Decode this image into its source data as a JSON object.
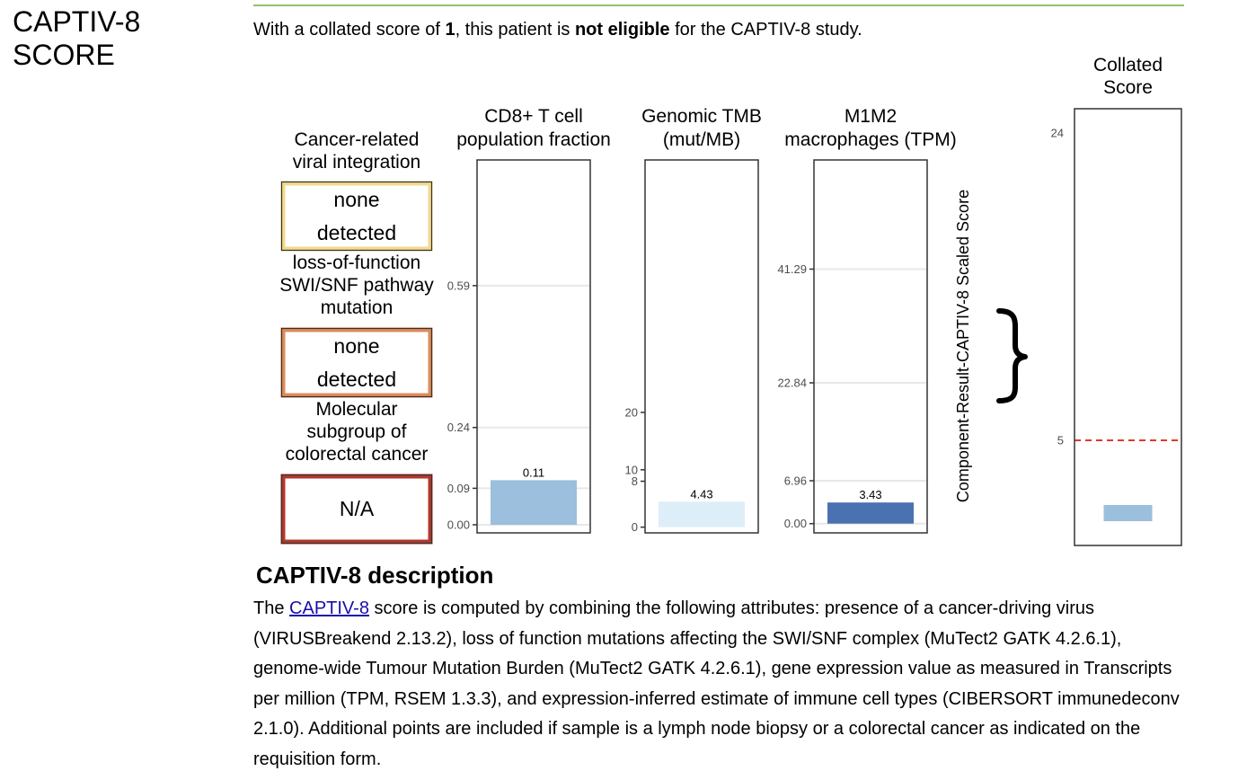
{
  "section": {
    "title": "CAPTIV-8 SCORE"
  },
  "summary": {
    "prefix": "With a collated score of ",
    "score": "1",
    "middle": ", this patient is ",
    "status": "not eligible",
    "suffix": " for the CAPTIV-8 study."
  },
  "categorical": [
    {
      "label": [
        "Cancer-related",
        "viral integration"
      ],
      "value": [
        "none",
        "detected"
      ],
      "color": "#f3d98b"
    },
    {
      "label": [
        "loss-of-function",
        "SWI/SNF pathway",
        "mutation"
      ],
      "value": [
        "none",
        "detected"
      ],
      "color": "#e08a58"
    },
    {
      "label": [
        "Molecular",
        "subgroup of",
        "colorectal cancer"
      ],
      "value": [
        "N/A"
      ],
      "color": "#b5372a"
    }
  ],
  "chart_data": [
    {
      "type": "bar",
      "title": [
        "CD8+ T cell",
        "population fraction"
      ],
      "ticks": [
        0.0,
        0.09,
        0.24,
        0.59
      ],
      "tick_labels": [
        "0.00",
        "0.09",
        "0.24",
        "0.59"
      ],
      "ylim": [
        -0.02,
        0.9
      ],
      "values": [
        0.11
      ],
      "value_labels": [
        "0.11"
      ],
      "colors": [
        "#9bbfdc"
      ],
      "grid": true
    },
    {
      "type": "bar",
      "title": [
        "Genomic TMB",
        "(mut/MB)"
      ],
      "ticks": [
        0,
        8,
        10,
        20
      ],
      "tick_labels": [
        "0",
        "8",
        "10",
        "20"
      ],
      "ylim": [
        -1,
        64
      ],
      "values": [
        4.43
      ],
      "value_labels": [
        "4.43"
      ],
      "colors": [
        "#ddeef8"
      ],
      "grid": false
    },
    {
      "type": "bar",
      "title": [
        "M1M2",
        "macrophages (TPM)"
      ],
      "ticks": [
        0.0,
        6.96,
        22.84,
        41.29
      ],
      "tick_labels": [
        "0.00",
        "6.96",
        "22.84",
        "41.29"
      ],
      "ylim": [
        -1.5,
        59
      ],
      "values": [
        3.43
      ],
      "value_labels": [
        "3.43"
      ],
      "colors": [
        "#4a72b0"
      ],
      "grid": true
    },
    {
      "type": "bar",
      "title": [
        "Collated",
        "Score"
      ],
      "ticks": [
        5,
        24
      ],
      "tick_labels": [
        "5",
        "24"
      ],
      "ylim": [
        -1.5,
        25.5
      ],
      "values": [
        1
      ],
      "colors": [
        "#9bbfdc"
      ],
      "threshold": 5,
      "threshold_color": "#e0392b",
      "grid": false
    }
  ],
  "axis": {
    "scaled_label": "Component-Result-CAPTIV-8 Scaled Score"
  },
  "description": {
    "title": "CAPTIV-8 description",
    "intro": "The ",
    "link": "CAPTIV-8",
    "body": " score is computed by combining the following attributes: presence of a cancer-driving virus (VIRUSBreakend 2.13.2), loss of function mutations affecting the SWI/SNF complex (MuTect2 GATK 4.2.6.1), genome-wide Tumour Mutation Burden (MuTect2 GATK 4.2.6.1), gene expression value as measured in Transcripts per million (TPM, RSEM 1.3.3), and expression-inferred estimate of immune cell types (CIBERSORT immunedeconv 2.1.0). Additional points are included if sample is a lymph node biopsy or a colorectal cancer as indicated on the requisition form."
  }
}
